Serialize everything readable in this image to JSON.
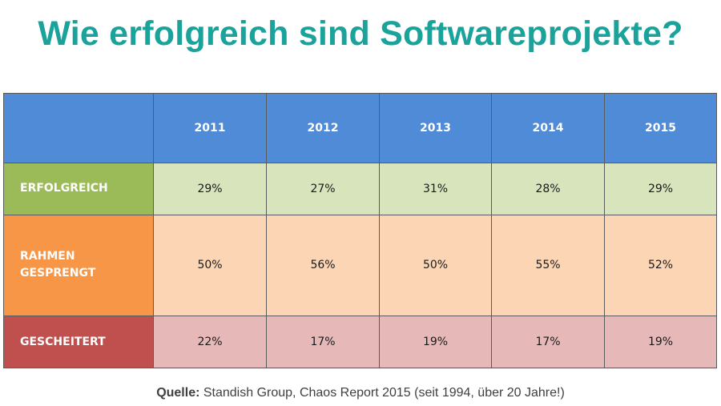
{
  "title": "Wie erfolgreich sind Softwareprojekte?",
  "colors": {
    "title": "#1ba29a",
    "header": "#4f8bd6",
    "erfolgreich": "#9bbb59",
    "erfolgreich_light": "#d8e4bc",
    "rahmen_gesprengt": "#f79646",
    "rahmen_gesprengt_light": "#fcd5b5",
    "gescheitert": "#c0504d",
    "gescheitert_light": "#e6b9b8"
  },
  "chart_data": {
    "type": "table",
    "title": "Wie erfolgreich sind Softwareprojekte?",
    "columns": [
      "2011",
      "2012",
      "2013",
      "2014",
      "2015"
    ],
    "rows": [
      {
        "label_lines": [
          "ERFOLGREICH"
        ],
        "values": [
          "29%",
          "27%",
          "31%",
          "28%",
          "29%"
        ]
      },
      {
        "label_lines": [
          "RAHMEN",
          "GESPRENGT"
        ],
        "values": [
          "50%",
          "56%",
          "50%",
          "55%",
          "52%"
        ]
      },
      {
        "label_lines": [
          "GESCHEITERT"
        ],
        "values": [
          "22%",
          "17%",
          "19%",
          "17%",
          "19%"
        ]
      }
    ]
  },
  "source": {
    "label": "Quelle:",
    "text": " Standish Group, Chaos Report 2015 (seit 1994, über 20 Jahre!)"
  }
}
